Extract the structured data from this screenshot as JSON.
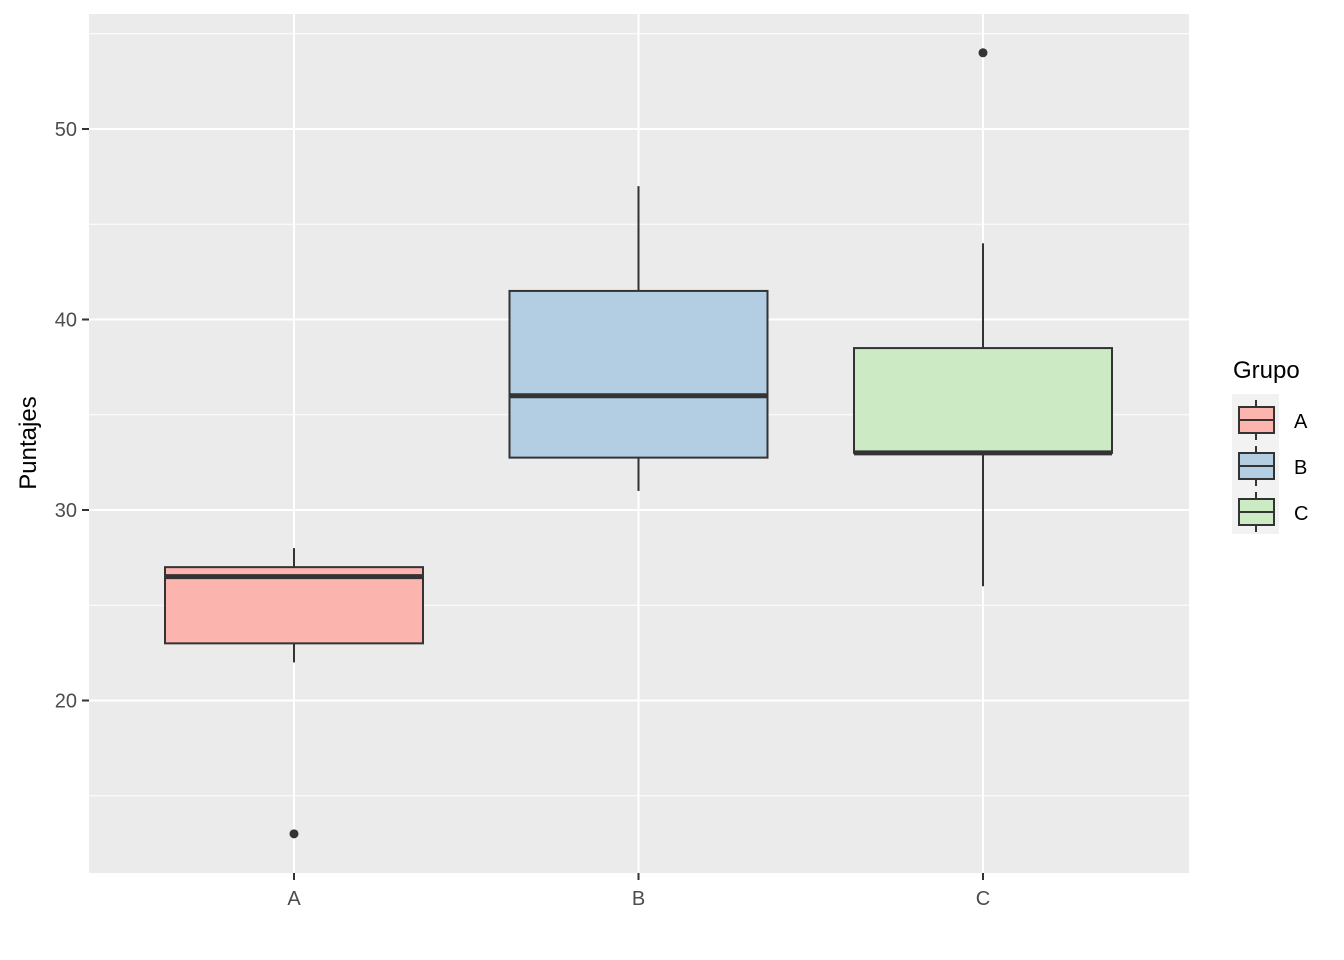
{
  "chart_data": {
    "type": "boxplot",
    "title": "",
    "xlabel": "",
    "ylabel": "Puntajes",
    "ylim": [
      11,
      56
    ],
    "yticks": [
      20,
      30,
      40,
      50
    ],
    "categories": [
      "A",
      "B",
      "C"
    ],
    "grid": true,
    "legend": {
      "title": "Grupo",
      "placement": "right",
      "entries": [
        "A",
        "B",
        "C"
      ]
    },
    "series": [
      {
        "name": "A",
        "color": "#FBB4AE",
        "whisker_low": 22,
        "q1": 23,
        "median": 26.5,
        "q3": 27,
        "whisker_high": 28,
        "outliers": [
          13
        ]
      },
      {
        "name": "B",
        "color": "#B3CDE3",
        "whisker_low": 31,
        "q1": 32.75,
        "median": 36,
        "q3": 41.5,
        "whisker_high": 47,
        "outliers": []
      },
      {
        "name": "C",
        "color": "#CCEBC5",
        "whisker_low": 26,
        "q1": 33,
        "median": 33,
        "q3": 38.5,
        "whisker_high": 44,
        "outliers": [
          54
        ]
      }
    ]
  },
  "colors": {
    "panel_background": "#EBEBEB",
    "grid_major": "#FFFFFF",
    "box_outline": "#333333"
  }
}
